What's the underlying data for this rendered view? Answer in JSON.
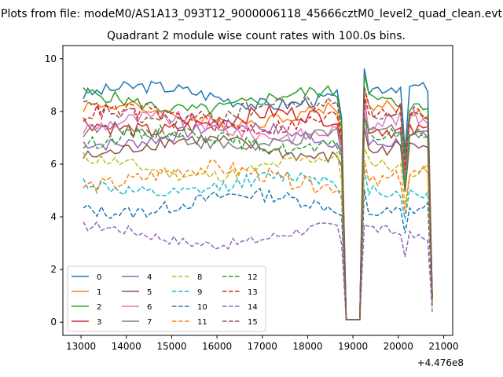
{
  "figure": {
    "suptitle": "Plots from file: modeM0/AS1A13_093T12_9000006118_45666cztM0_level2_quad_clean.evt",
    "title": "Quadrant 2 module wise count rates with 100.0s bins.",
    "x_offset_label": "+4.476e8"
  },
  "chart_data": {
    "type": "line",
    "title": "Quadrant 2 module wise count rates with 100.0s bins.",
    "xlabel": "",
    "ylabel": "",
    "x_offset": 447600000,
    "xlim": [
      12600,
      21200
    ],
    "ylim": [
      -0.5,
      10.5
    ],
    "xticks": [
      13000,
      14000,
      15000,
      16000,
      17000,
      18000,
      19000,
      20000,
      21000
    ],
    "xtick_labels": [
      "13000",
      "14000",
      "15000",
      "16000",
      "17000",
      "18000",
      "19000",
      "20000",
      "21000"
    ],
    "yticks": [
      0,
      2,
      4,
      6,
      8,
      10
    ],
    "ytick_labels": [
      "0",
      "2",
      "4",
      "6",
      "8",
      "10"
    ],
    "grid": false,
    "legend_position": "lower-left",
    "legend_columns": 4,
    "gaps": [
      {
        "start": 18750,
        "end": 19250
      },
      {
        "start": 20100,
        "end": 20200
      },
      {
        "start": 20700,
        "end": 20800
      }
    ],
    "series": [
      {
        "name": "0",
        "color": "#1f77b4",
        "style": "solid",
        "level": 8.6,
        "noise": 0.25
      },
      {
        "name": "1",
        "color": "#ff7f0e",
        "style": "solid",
        "level": 7.9,
        "noise": 0.25
      },
      {
        "name": "2",
        "color": "#2ca02c",
        "style": "solid",
        "level": 8.4,
        "noise": 0.25
      },
      {
        "name": "3",
        "color": "#d62728",
        "style": "solid",
        "level": 7.6,
        "noise": 0.3
      },
      {
        "name": "4",
        "color": "#9467bd",
        "style": "solid",
        "level": 7.1,
        "noise": 0.25
      },
      {
        "name": "5",
        "color": "#8c564b",
        "style": "solid",
        "level": 6.6,
        "noise": 0.25
      },
      {
        "name": "6",
        "color": "#e377c2",
        "style": "solid",
        "level": 7.4,
        "noise": 0.3
      },
      {
        "name": "7",
        "color": "#7f7f7f",
        "style": "solid",
        "level": 7.0,
        "noise": 0.25
      },
      {
        "name": "8",
        "color": "#bcbd22",
        "style": "dashed",
        "level": 5.9,
        "noise": 0.25
      },
      {
        "name": "9",
        "color": "#17becf",
        "style": "dashed",
        "level": 5.2,
        "noise": 0.25
      },
      {
        "name": "10",
        "color": "#1f77b4",
        "style": "dashed",
        "level": 4.5,
        "noise": 0.25
      },
      {
        "name": "11",
        "color": "#ff7f0e",
        "style": "dashed",
        "level": 5.5,
        "noise": 0.3
      },
      {
        "name": "12",
        "color": "#2ca02c",
        "style": "dashed",
        "level": 6.9,
        "noise": 0.25
      },
      {
        "name": "13",
        "color": "#d62728",
        "style": "dashed",
        "level": 7.7,
        "noise": 0.3
      },
      {
        "name": "14",
        "color": "#9467bd",
        "style": "dashed",
        "level": 3.3,
        "noise": 0.2
      },
      {
        "name": "15",
        "color": "#8c564b",
        "style": "dashed",
        "level": 8.0,
        "noise": 0.3
      }
    ]
  }
}
